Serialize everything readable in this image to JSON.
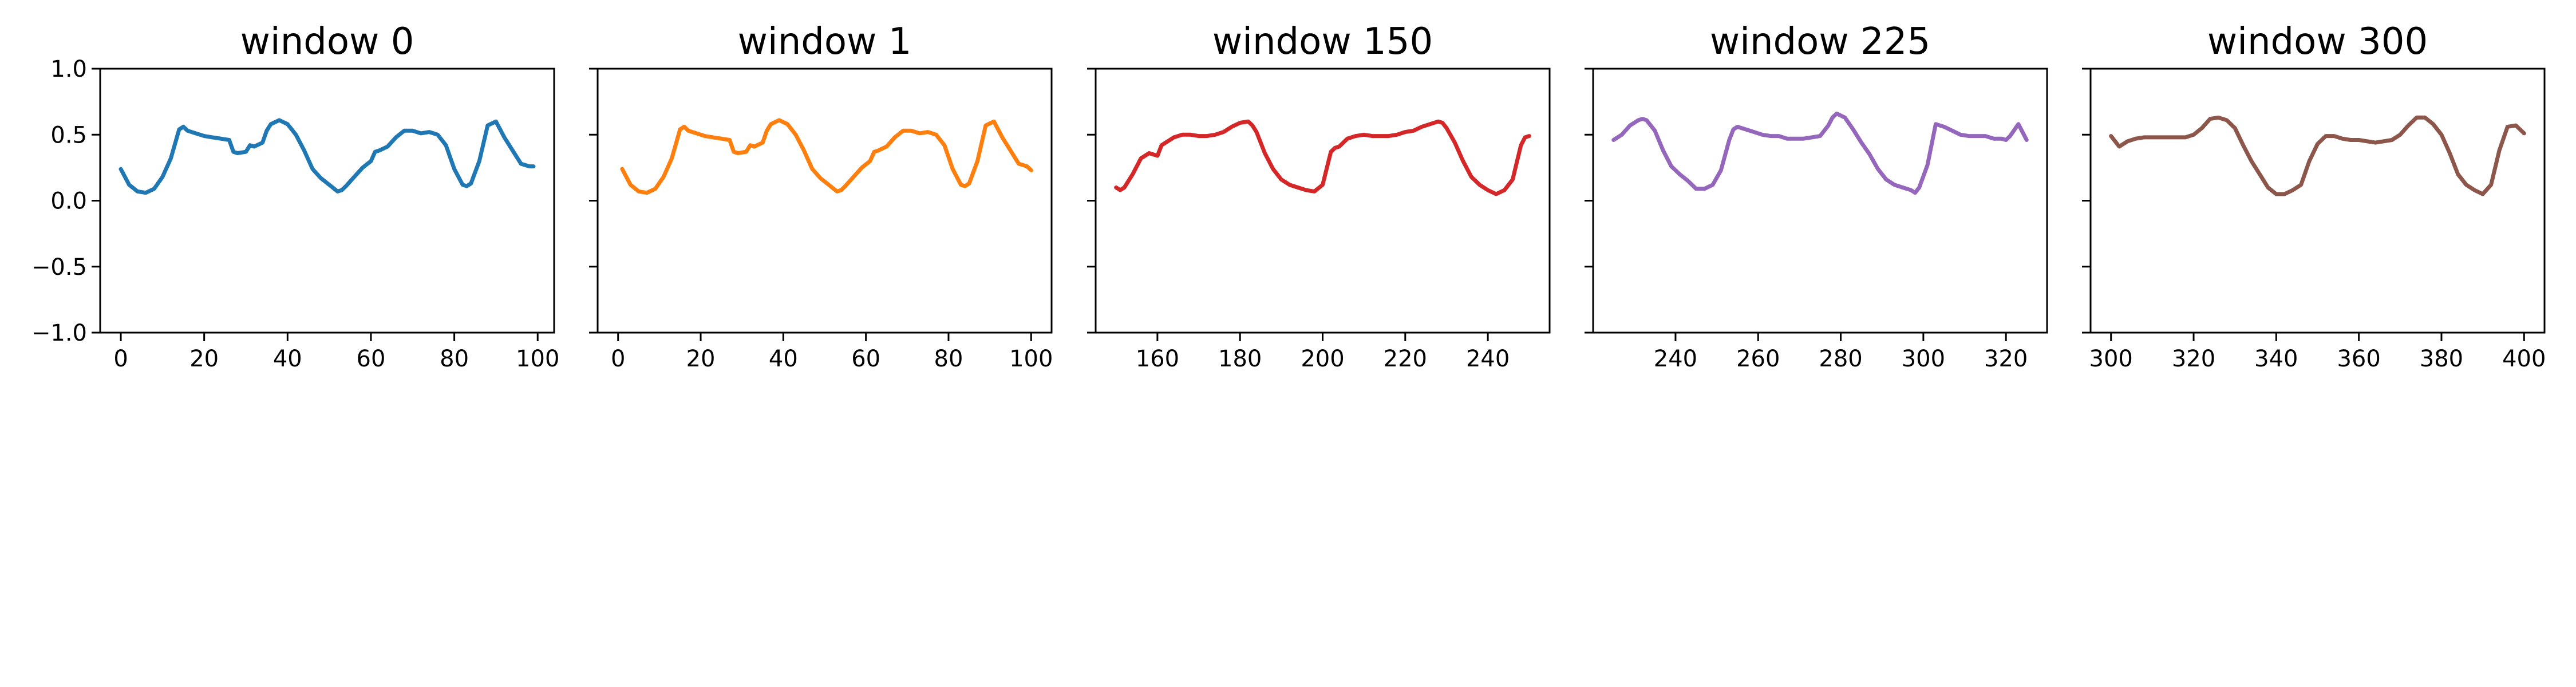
{
  "chart_data": [
    {
      "type": "line",
      "title": "window 0",
      "xlim": [
        -4.95,
        103.95
      ],
      "ylim": [
        -1.0,
        1.0
      ],
      "xticks": [
        0,
        20,
        40,
        60,
        80,
        100
      ],
      "yticks": [
        -1.0,
        -0.5,
        0.0,
        0.5,
        1.0
      ],
      "ytick_labels": [
        "−1.0",
        "−0.5",
        "0.0",
        "0.5",
        "1.0"
      ],
      "show_ytick_labels": true,
      "color": "#1f77b4",
      "x": [
        0,
        2,
        4,
        6,
        8,
        10,
        12,
        14,
        15,
        16,
        18,
        20,
        22,
        24,
        26,
        27,
        28,
        30,
        31,
        32,
        34,
        35,
        36,
        38,
        40,
        42,
        44,
        46,
        48,
        50,
        52,
        53,
        54,
        56,
        58,
        60,
        61,
        62,
        64,
        66,
        68,
        70,
        72,
        74,
        75,
        76,
        78,
        79,
        80,
        82,
        83,
        84,
        86,
        88,
        90,
        92,
        94,
        96,
        98,
        99
      ],
      "y": [
        0.24,
        0.12,
        0.07,
        0.06,
        0.09,
        0.18,
        0.32,
        0.54,
        0.56,
        0.53,
        0.51,
        0.49,
        0.48,
        0.47,
        0.46,
        0.37,
        0.36,
        0.37,
        0.42,
        0.41,
        0.44,
        0.53,
        0.58,
        0.61,
        0.58,
        0.5,
        0.38,
        0.24,
        0.17,
        0.12,
        0.07,
        0.08,
        0.11,
        0.18,
        0.25,
        0.3,
        0.37,
        0.38,
        0.41,
        0.48,
        0.53,
        0.53,
        0.51,
        0.52,
        0.51,
        0.5,
        0.42,
        0.33,
        0.24,
        0.12,
        0.11,
        0.13,
        0.3,
        0.57,
        0.6,
        0.48,
        0.38,
        0.28,
        0.26,
        0.26
      ]
    },
    {
      "type": "line",
      "title": "window 1",
      "xlim": [
        -4.95,
        104.95
      ],
      "ylim": [
        -1.0,
        1.0
      ],
      "xticks": [
        0,
        20,
        40,
        60,
        80,
        100
      ],
      "yticks": [
        -1.0,
        -0.5,
        0.0,
        0.5,
        1.0
      ],
      "show_ytick_labels": false,
      "color": "#ff7f0e",
      "x": [
        1,
        3,
        5,
        7,
        9,
        11,
        13,
        15,
        16,
        17,
        19,
        21,
        23,
        25,
        27,
        28,
        29,
        31,
        32,
        33,
        35,
        36,
        37,
        39,
        41,
        43,
        45,
        47,
        49,
        51,
        53,
        54,
        55,
        57,
        59,
        61,
        62,
        63,
        65,
        67,
        69,
        71,
        73,
        75,
        76,
        77,
        79,
        80,
        81,
        83,
        84,
        85,
        87,
        89,
        91,
        93,
        95,
        97,
        99,
        100
      ],
      "y": [
        0.24,
        0.12,
        0.07,
        0.06,
        0.09,
        0.18,
        0.32,
        0.54,
        0.56,
        0.53,
        0.51,
        0.49,
        0.48,
        0.47,
        0.46,
        0.37,
        0.36,
        0.37,
        0.42,
        0.41,
        0.44,
        0.53,
        0.58,
        0.61,
        0.58,
        0.5,
        0.38,
        0.24,
        0.17,
        0.12,
        0.07,
        0.08,
        0.11,
        0.18,
        0.25,
        0.3,
        0.37,
        0.38,
        0.41,
        0.48,
        0.53,
        0.53,
        0.51,
        0.52,
        0.51,
        0.5,
        0.42,
        0.33,
        0.24,
        0.12,
        0.11,
        0.13,
        0.3,
        0.57,
        0.6,
        0.48,
        0.38,
        0.28,
        0.26,
        0.23
      ]
    },
    {
      "type": "line",
      "title": "window 150",
      "xlim": [
        145.05,
        254.95
      ],
      "ylim": [
        -1.0,
        1.0
      ],
      "xticks": [
        160,
        180,
        200,
        220,
        240
      ],
      "yticks": [
        -1.0,
        -0.5,
        0.0,
        0.5,
        1.0
      ],
      "show_ytick_labels": false,
      "color": "#d62728",
      "x": [
        150,
        151,
        152,
        154,
        156,
        158,
        160,
        161,
        162,
        164,
        166,
        168,
        170,
        172,
        174,
        176,
        178,
        180,
        182,
        183,
        184,
        186,
        188,
        190,
        192,
        194,
        196,
        198,
        200,
        202,
        203,
        204,
        206,
        208,
        210,
        212,
        214,
        216,
        218,
        220,
        222,
        224,
        226,
        228,
        229,
        230,
        232,
        234,
        236,
        238,
        240,
        242,
        244,
        246,
        248,
        249,
        250
      ],
      "y": [
        0.1,
        0.08,
        0.1,
        0.2,
        0.32,
        0.36,
        0.34,
        0.42,
        0.44,
        0.48,
        0.5,
        0.5,
        0.49,
        0.49,
        0.5,
        0.52,
        0.56,
        0.59,
        0.6,
        0.57,
        0.52,
        0.36,
        0.24,
        0.16,
        0.12,
        0.1,
        0.08,
        0.07,
        0.12,
        0.37,
        0.4,
        0.41,
        0.47,
        0.49,
        0.5,
        0.49,
        0.49,
        0.49,
        0.5,
        0.52,
        0.53,
        0.56,
        0.58,
        0.6,
        0.59,
        0.55,
        0.44,
        0.3,
        0.18,
        0.12,
        0.08,
        0.05,
        0.08,
        0.16,
        0.42,
        0.48,
        0.49
      ]
    },
    {
      "type": "line",
      "title": "window 225",
      "xlim": [
        220.05,
        329.95
      ],
      "ylim": [
        -1.0,
        1.0
      ],
      "xticks": [
        240,
        260,
        280,
        300,
        320
      ],
      "yticks": [
        -1.0,
        -0.5,
        0.0,
        0.5,
        1.0
      ],
      "show_ytick_labels": false,
      "color": "#9467bd",
      "x": [
        225,
        227,
        229,
        231,
        232,
        233,
        235,
        237,
        239,
        241,
        243,
        245,
        246,
        247,
        249,
        251,
        253,
        254,
        255,
        257,
        259,
        261,
        263,
        265,
        267,
        269,
        271,
        273,
        275,
        277,
        278,
        279,
        281,
        283,
        285,
        287,
        289,
        291,
        293,
        295,
        297,
        298,
        299,
        301,
        303,
        305,
        307,
        309,
        311,
        313,
        315,
        317,
        319,
        320,
        321,
        323,
        325
      ],
      "y": [
        0.46,
        0.5,
        0.57,
        0.61,
        0.62,
        0.61,
        0.53,
        0.38,
        0.26,
        0.2,
        0.15,
        0.09,
        0.09,
        0.09,
        0.12,
        0.23,
        0.46,
        0.54,
        0.56,
        0.54,
        0.52,
        0.5,
        0.49,
        0.49,
        0.47,
        0.47,
        0.47,
        0.48,
        0.49,
        0.57,
        0.63,
        0.66,
        0.63,
        0.54,
        0.44,
        0.35,
        0.24,
        0.16,
        0.12,
        0.1,
        0.08,
        0.06,
        0.1,
        0.27,
        0.58,
        0.56,
        0.53,
        0.5,
        0.49,
        0.49,
        0.49,
        0.47,
        0.47,
        0.46,
        0.49,
        0.58,
        0.46
      ]
    },
    {
      "type": "line",
      "title": "window 300",
      "xlim": [
        295.05,
        404.95
      ],
      "ylim": [
        -1.0,
        1.0
      ],
      "xticks": [
        300,
        320,
        340,
        360,
        380,
        400
      ],
      "yticks": [
        -1.0,
        -0.5,
        0.0,
        0.5,
        1.0
      ],
      "show_ytick_labels": false,
      "color": "#8c564b",
      "x": [
        300,
        302,
        304,
        306,
        308,
        310,
        312,
        314,
        316,
        318,
        320,
        322,
        324,
        326,
        328,
        330,
        332,
        334,
        336,
        338,
        340,
        342,
        344,
        346,
        348,
        350,
        352,
        354,
        356,
        358,
        360,
        362,
        364,
        366,
        368,
        370,
        372,
        374,
        376,
        378,
        380,
        382,
        384,
        386,
        388,
        390,
        392,
        394,
        396,
        398,
        400
      ],
      "y": [
        0.49,
        0.41,
        0.45,
        0.47,
        0.48,
        0.48,
        0.48,
        0.48,
        0.48,
        0.48,
        0.5,
        0.55,
        0.62,
        0.63,
        0.61,
        0.55,
        0.42,
        0.3,
        0.2,
        0.1,
        0.05,
        0.05,
        0.08,
        0.12,
        0.3,
        0.43,
        0.49,
        0.49,
        0.47,
        0.46,
        0.46,
        0.45,
        0.44,
        0.45,
        0.46,
        0.5,
        0.57,
        0.63,
        0.63,
        0.58,
        0.5,
        0.36,
        0.2,
        0.12,
        0.08,
        0.05,
        0.12,
        0.38,
        0.56,
        0.57,
        0.51
      ]
    }
  ]
}
